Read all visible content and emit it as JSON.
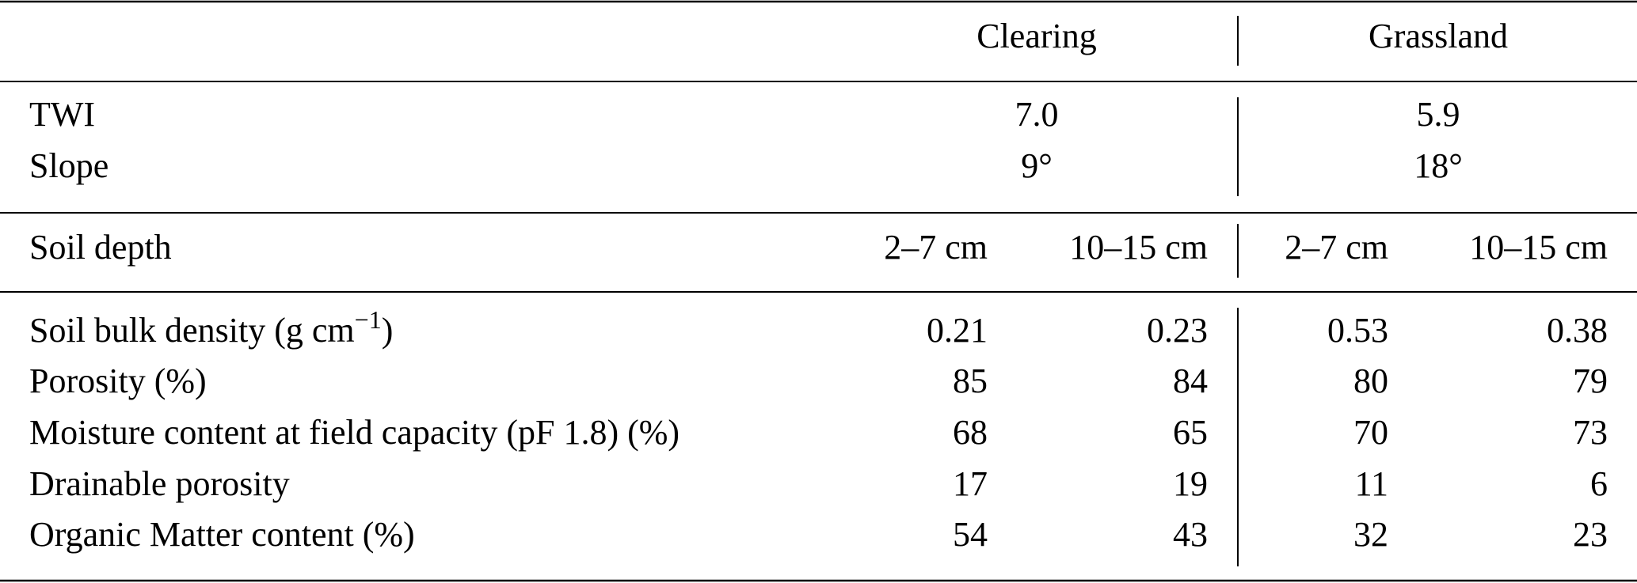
{
  "table": {
    "groups": [
      "Clearing",
      "Grassland"
    ],
    "site_rows": [
      {
        "label": "TWI",
        "values": [
          "7.0",
          "5.9"
        ]
      },
      {
        "label": "Slope",
        "values": [
          "9°",
          "18°"
        ]
      }
    ],
    "depth_row": {
      "label": "Soil depth",
      "values": [
        "2–7 cm",
        "10–15 cm",
        "2–7 cm",
        "10–15 cm"
      ]
    },
    "rows": [
      {
        "label_parts": [
          "Soil bulk density (g cm",
          "−1",
          ")"
        ],
        "values": [
          "0.21",
          "0.23",
          "0.53",
          "0.38"
        ]
      },
      {
        "label": "Porosity (%)",
        "values": [
          "85",
          "84",
          "80",
          "79"
        ]
      },
      {
        "label": "Moisture content at field capacity (pF 1.8) (%)",
        "values": [
          "68",
          "65",
          "70",
          "73"
        ]
      },
      {
        "label": "Drainable porosity",
        "values": [
          "17",
          "19",
          "11",
          "6"
        ]
      },
      {
        "label": "Organic Matter content (%)",
        "values": [
          "54",
          "43",
          "32",
          "23"
        ]
      }
    ]
  }
}
